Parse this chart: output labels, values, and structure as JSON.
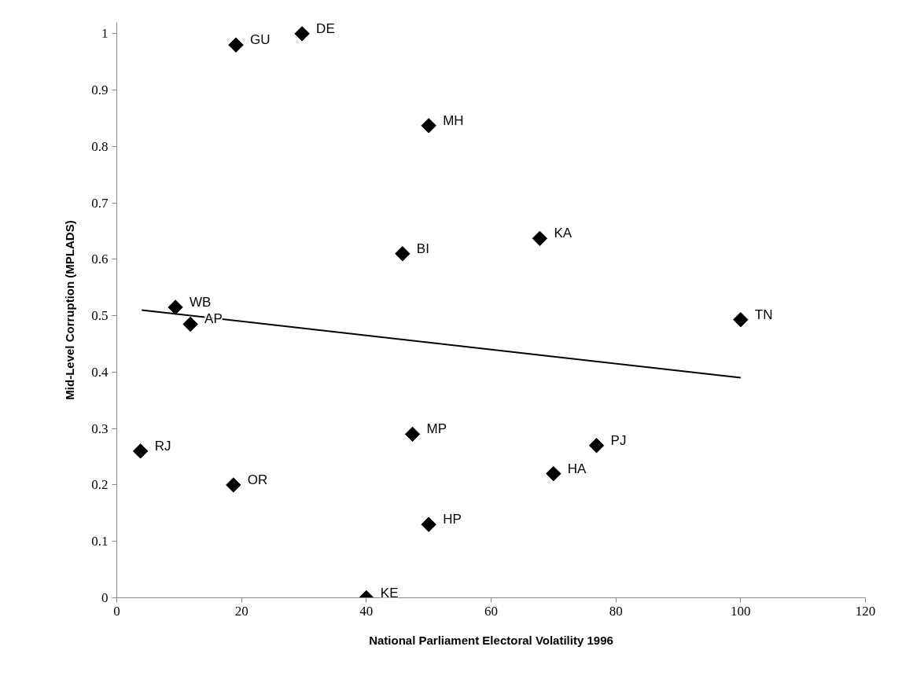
{
  "chart_data": {
    "type": "scatter",
    "xlabel": "National Parliament Electoral Volatility 1996",
    "ylabel": "Mid-Level Corruption (MPLADS)",
    "xlim": [
      0,
      120
    ],
    "xticks": [
      0,
      20,
      40,
      60,
      80,
      100,
      120
    ],
    "ylim": [
      0,
      1.02
    ],
    "yticks": [
      0,
      0.1,
      0.2,
      0.3,
      0.4,
      0.5,
      0.6,
      0.7,
      0.8,
      0.9,
      1
    ],
    "grid": false,
    "series": [
      {
        "marker": "diamond",
        "color": "#000000",
        "x": [
          19.1,
          29.7,
          50,
          45.8,
          9.4,
          11.8,
          67.8,
          100,
          47.4,
          76.9,
          70,
          50,
          40,
          3.8,
          18.7
        ],
        "values": [
          0.98,
          1.0,
          0.837,
          0.61,
          0.515,
          0.485,
          0.637,
          0.493,
          0.29,
          0.27,
          0.22,
          0.13,
          0,
          0.26,
          0.2
        ],
        "value_labels": [
          "GU",
          "DE",
          "MH",
          "BI",
          "WB",
          "AP",
          "KA",
          "TN",
          "MP",
          "PJ",
          "HA",
          "HP",
          "KE",
          "RJ",
          "OR"
        ]
      },
      {
        "type": "line",
        "color": "#000000",
        "x": [
          4,
          100
        ],
        "values": [
          0.51,
          0.39
        ]
      }
    ]
  }
}
